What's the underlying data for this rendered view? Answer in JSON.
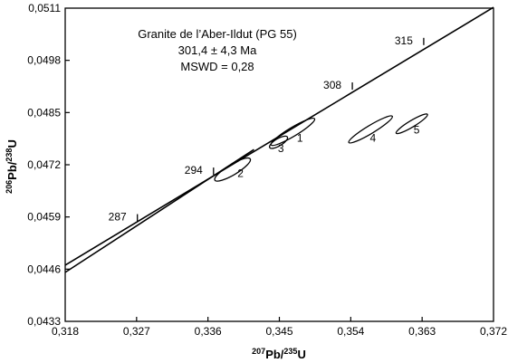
{
  "chart_data": {
    "type": "scatter",
    "title": "",
    "xlabel": {
      "sup": "207",
      "base1": "Pb/",
      "sup2": "235",
      "base2": "U"
    },
    "ylabel": {
      "sup": "206",
      "base1": "Pb/",
      "sup2": "238",
      "base2": "U"
    },
    "xlim": [
      0.318,
      0.372
    ],
    "ylim": [
      0.0433,
      0.0511
    ],
    "x_ticks": [
      {
        "v": 0.318,
        "label": "0,318"
      },
      {
        "v": 0.327,
        "label": "0,327"
      },
      {
        "v": 0.336,
        "label": "0,336"
      },
      {
        "v": 0.345,
        "label": "0,345"
      },
      {
        "v": 0.354,
        "label": "0,354"
      },
      {
        "v": 0.363,
        "label": "0,363"
      },
      {
        "v": 0.372,
        "label": "0,372"
      }
    ],
    "y_ticks": [
      {
        "v": 0.0433,
        "label": "0,0433"
      },
      {
        "v": 0.0446,
        "label": "0,0446"
      },
      {
        "v": 0.0459,
        "label": "0,0459"
      },
      {
        "v": 0.0472,
        "label": "0,0472"
      },
      {
        "v": 0.0485,
        "label": "0,0485"
      },
      {
        "v": 0.0498,
        "label": "0,0498"
      },
      {
        "v": 0.0511,
        "label": "0,0511"
      }
    ],
    "annotation": [
      "Granite de l’Aber-Ildut (PG 55)",
      "301,4 ± 4,3 Ma",
      "MSWD = 0,28"
    ],
    "concordia": {
      "start": [
        0.318,
        0.0447
      ],
      "end": [
        0.372,
        0.05112
      ],
      "age_ticks": [
        {
          "label": "287",
          "x": 0.3271,
          "y": 0.04579
        },
        {
          "label": "294",
          "x": 0.3367,
          "y": 0.04695
        },
        {
          "label": "308",
          "x": 0.3542,
          "y": 0.04907
        },
        {
          "label": "315",
          "x": 0.3632,
          "y": 0.05018
        }
      ]
    },
    "discordia": {
      "start": [
        0.318,
        0.04452
      ],
      "end": [
        0.3418,
        0.04758
      ]
    },
    "ellipses": [
      {
        "label": "1",
        "cx": 0.3467,
        "cy": 0.04802,
        "rx": 0.0032,
        "ry": 0.00011,
        "label_x": 0.3476,
        "label_y": 0.04778
      },
      {
        "label": "3",
        "cx": 0.3449,
        "cy": 0.04776,
        "rx": 0.0013,
        "ry": 9e-05,
        "label_x": 0.3452,
        "label_y": 0.04752
      },
      {
        "label": "2",
        "cx": 0.3391,
        "cy": 0.04708,
        "rx": 0.0026,
        "ry": 0.00013,
        "label_x": 0.3401,
        "label_y": 0.0469
      },
      {
        "label": "4",
        "cx": 0.3565,
        "cy": 0.04808,
        "rx": 0.0032,
        "ry": 0.0001,
        "label_x": 0.3568,
        "label_y": 0.04777
      },
      {
        "label": "5",
        "cx": 0.3617,
        "cy": 0.04822,
        "rx": 0.0023,
        "ry": 8e-05,
        "label_x": 0.3623,
        "label_y": 0.04798
      }
    ]
  }
}
